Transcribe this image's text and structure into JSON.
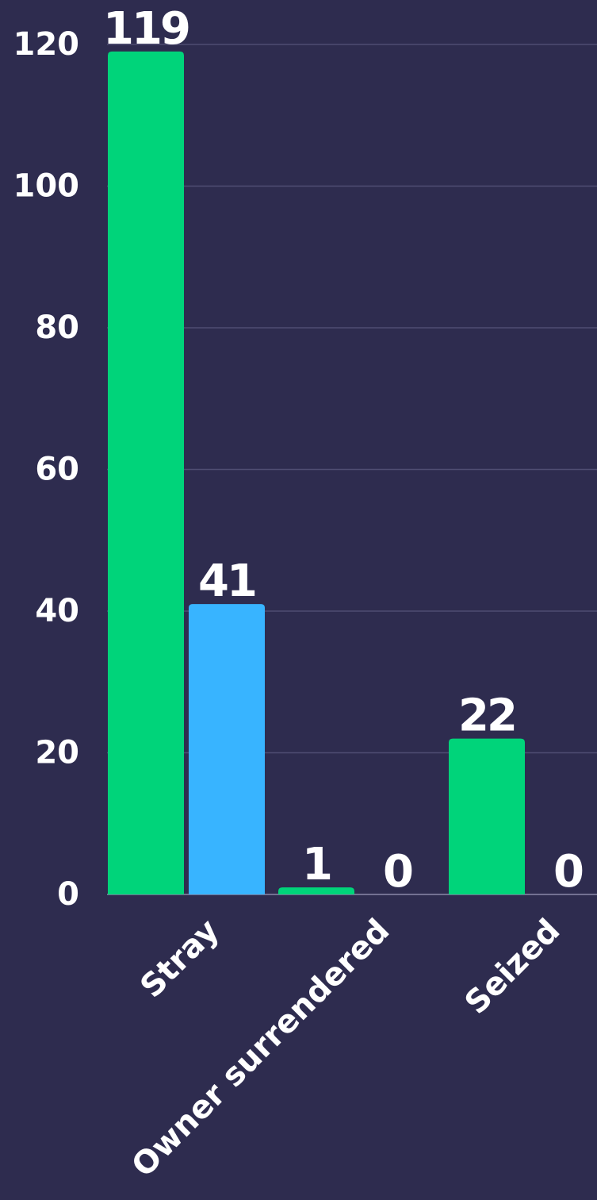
{
  "chart_data": {
    "type": "bar",
    "categories": [
      "Stray",
      "Owner surrendered",
      "Seized"
    ],
    "series": [
      {
        "color": "#00d47a",
        "values": [
          119,
          1,
          22
        ]
      },
      {
        "color": "#38b4ff",
        "values": [
          41,
          0,
          0
        ]
      }
    ],
    "ylim": [
      0,
      120
    ],
    "yticks": [
      0,
      20,
      40,
      60,
      80,
      100,
      120
    ],
    "grid": true
  }
}
